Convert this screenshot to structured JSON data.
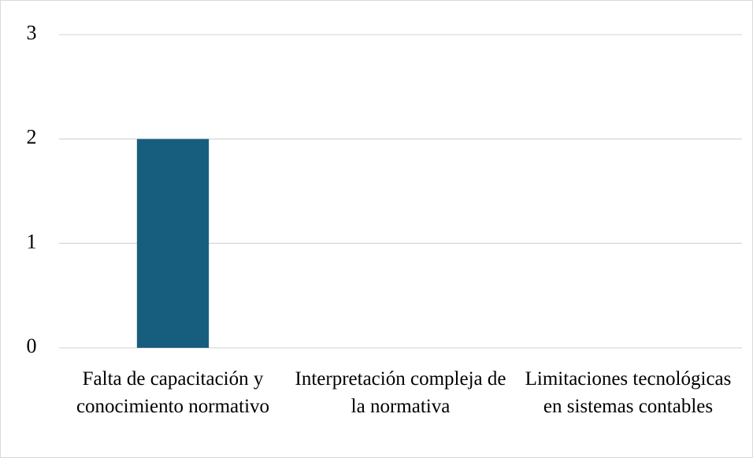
{
  "chart_data": {
    "type": "bar",
    "categories": [
      "Falta de capacitación y conocimiento normativo",
      "Interpretación compleja de la normativa",
      "Limitaciones tecnológicas en sistemas contables"
    ],
    "values": [
      2,
      0,
      0
    ],
    "color": "#175e7e",
    "ylim": [
      0,
      3
    ],
    "yticks": [
      0,
      1,
      2,
      3
    ],
    "grid": true
  }
}
